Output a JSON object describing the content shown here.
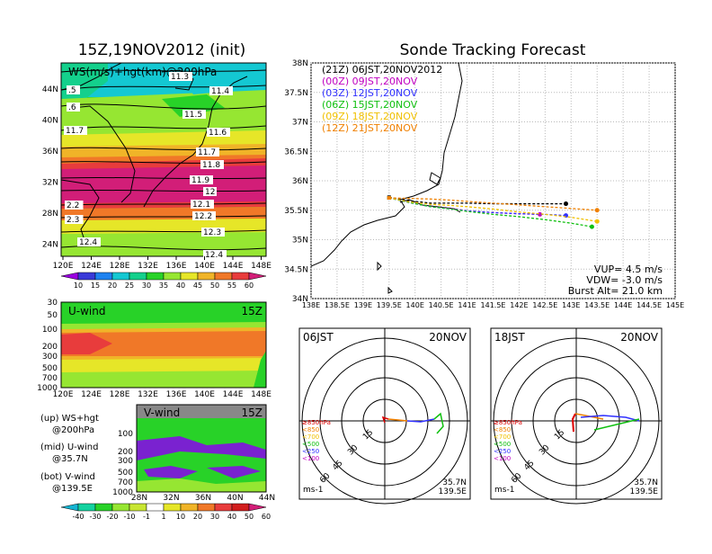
{
  "left_title": "15Z,19NOV2012 (init)",
  "right_title": "Sonde Tracking Forecast",
  "map_panel": {
    "label": "WS(m/s)+hgt(km)@200hPa",
    "lon_ticks": [
      "120E",
      "124E",
      "128E",
      "132E",
      "136E",
      "140E",
      "144E",
      "148E"
    ],
    "lat_ticks": [
      "44N",
      "40N",
      "36N",
      "32N",
      "28N",
      "24N"
    ],
    "contour_labels": [
      "11.3",
      "11.4",
      "11.5",
      "11.6",
      "11.7",
      "11.8",
      "11.9",
      "12",
      "12.1",
      "12.2",
      "12.3",
      "12.4",
      ".5",
      ".6",
      "11.7",
      "2.2",
      "2.3",
      "12.4"
    ]
  },
  "ws_colorbar": {
    "ticks": [
      "10",
      "15",
      "20",
      "25",
      "30",
      "35",
      "40",
      "45",
      "50",
      "55",
      "60"
    ],
    "colors": [
      "#9a00e0",
      "#3a3ad8",
      "#1e82f0",
      "#14c8d2",
      "#14d08c",
      "#28d228",
      "#96e632",
      "#e6e628",
      "#f0b428",
      "#f07828",
      "#e83c3c",
      "#d21e78"
    ]
  },
  "u_panel": {
    "label": "U-wind",
    "time": "15Z",
    "y_ticks": [
      "30",
      "50",
      "100",
      "200",
      "300",
      "500",
      "700",
      "1000"
    ],
    "x_ticks": [
      "120E",
      "124E",
      "128E",
      "132E",
      "136E",
      "140E",
      "144E",
      "148E"
    ]
  },
  "v_panel": {
    "label": "V-wind",
    "time": "15Z",
    "y_ticks": [
      "100",
      "200",
      "300",
      "500",
      "700",
      "1000"
    ],
    "x_ticks": [
      "28N",
      "32N",
      "36N",
      "40N",
      "44N"
    ]
  },
  "legend_text": {
    "l1": "(up) WS+hgt",
    "l2": "@200hPa",
    "l3": "(mid) U-wind",
    "l4": "@35.7N",
    "l5": "(bot) V-wind",
    "l6": "@139.5E"
  },
  "wind_colorbar": {
    "ticks": [
      "-40",
      "-30",
      "-20",
      "-10",
      "-1",
      "1",
      "10",
      "20",
      "30",
      "40",
      "50",
      "60"
    ],
    "colors": [
      "#14b4d2",
      "#14d2a0",
      "#28d228",
      "#96e632",
      "#c8e632",
      "#ffffff",
      "#e6e628",
      "#f0b428",
      "#f07828",
      "#e83c3c",
      "#d21e1e",
      "#d21e78"
    ]
  },
  "chart_data": {
    "type": "line",
    "title": "Sonde Tracking Forecast",
    "x_ticks": [
      "138E",
      "138.5E",
      "139E",
      "139.5E",
      "140E",
      "140.5E",
      "141E",
      "141.5E",
      "142E",
      "142.5E",
      "143E",
      "143.5E",
      "144E",
      "144.5E",
      "145E"
    ],
    "y_ticks": [
      "34N",
      "34.5N",
      "35N",
      "35.5N",
      "36N",
      "36.5N",
      "37N",
      "37.5N",
      "38N"
    ],
    "xlim": [
      138,
      145
    ],
    "ylim": [
      34,
      38
    ],
    "grid": true,
    "legend_position": "top-left",
    "series": [
      {
        "name": "(21Z) 06JST,20NOV2012",
        "color": "#000000",
        "x": [
          139.5,
          139.9,
          140.3,
          140.7,
          141.0,
          141.5,
          142.0,
          142.5,
          142.9
        ],
        "y": [
          35.72,
          35.66,
          35.62,
          35.62,
          35.62,
          35.61,
          35.61,
          35.61,
          35.61
        ]
      },
      {
        "name": "(00Z) 09JST,20NOV",
        "color": "#c000c0",
        "x": [
          139.5,
          139.9,
          140.3,
          140.7,
          141.0,
          141.5,
          142.0,
          142.4
        ],
        "y": [
          35.71,
          35.63,
          35.56,
          35.53,
          35.49,
          35.46,
          35.44,
          35.43
        ]
      },
      {
        "name": "(03Z) 12JST,20NOV",
        "color": "#3030ff",
        "x": [
          139.5,
          139.9,
          140.3,
          140.7,
          141.0,
          141.5,
          142.0,
          142.5,
          142.9
        ],
        "y": [
          35.71,
          35.63,
          35.56,
          35.52,
          35.49,
          35.46,
          35.44,
          35.43,
          35.41
        ]
      },
      {
        "name": "(06Z) 15JST,20NOV",
        "color": "#10c010",
        "x": [
          139.5,
          139.9,
          140.3,
          140.7,
          141.0,
          141.5,
          142.0,
          142.5,
          143.0,
          143.4
        ],
        "y": [
          35.71,
          35.63,
          35.56,
          35.52,
          35.48,
          35.43,
          35.39,
          35.34,
          35.28,
          35.22
        ]
      },
      {
        "name": "(09Z) 18JST,20NOV",
        "color": "#f0c000",
        "x": [
          139.5,
          139.9,
          140.3,
          140.7,
          141.0,
          141.5,
          142.0,
          142.5,
          143.0,
          143.5
        ],
        "y": [
          35.71,
          35.64,
          35.6,
          35.58,
          35.56,
          35.52,
          35.47,
          35.43,
          35.38,
          35.31
        ]
      },
      {
        "name": "(12Z) 21JST,20NOV",
        "color": "#f08000",
        "x": [
          139.5,
          139.9,
          140.3,
          140.7,
          141.0,
          141.5,
          142.0,
          142.5,
          143.0,
          143.5
        ],
        "y": [
          35.71,
          35.7,
          35.69,
          35.67,
          35.65,
          35.62,
          35.59,
          35.56,
          35.53,
          35.5
        ]
      }
    ],
    "annotations": {
      "vup": "VUP= 4.5 m/s",
      "vdw": "VDW= -3.0 m/s",
      "burst": "Burst Alt= 21.0 km"
    }
  },
  "polar_left": {
    "time": "06JST",
    "date": "20NOV",
    "ring_labels": [
      "15",
      "30",
      "45",
      "60"
    ],
    "legend": [
      "≥850hPa",
      "<850",
      "<700",
      "<500",
      "<250",
      "<100"
    ],
    "legend_colors": [
      "#e00000",
      "#f08000",
      "#f0c000",
      "#10c010",
      "#3030ff",
      "#c000c0"
    ],
    "unit": "ms-1",
    "lat": "35.7N",
    "lon": "139.5E"
  },
  "polar_right": {
    "time": "18JST",
    "date": "20NOV",
    "ring_labels": [
      "15",
      "30",
      "45",
      "60"
    ],
    "legend": [
      "≥850hPa",
      "<850",
      "<700",
      "<500",
      "<250",
      "<100"
    ],
    "legend_colors": [
      "#e00000",
      "#f08000",
      "#f0c000",
      "#10c010",
      "#3030ff",
      "#c000c0"
    ],
    "unit": "ms-1",
    "lat": "35.7N",
    "lon": "139.5E"
  }
}
